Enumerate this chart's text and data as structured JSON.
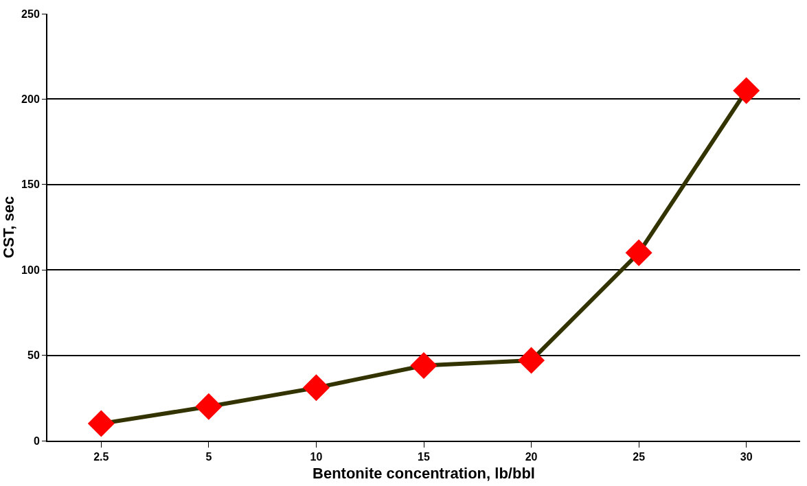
{
  "chart_data": {
    "type": "line",
    "xlabel": "Bentonite concentration, lb/bbl",
    "ylabel": "CST, sec",
    "categories": [
      "2.5",
      "5",
      "10",
      "15",
      "20",
      "25",
      "30"
    ],
    "series": [
      {
        "color": "#333300",
        "colors": [
          "#ff0000",
          "#ff0000",
          "#ff0000",
          "#ff0000",
          "#ff0000",
          "#ff0000",
          "#ff0000"
        ],
        "values": [
          10,
          20,
          31,
          44,
          47,
          110,
          205
        ]
      }
    ],
    "ylim": [
      0,
      250
    ],
    "yticks": [
      0,
      50,
      100,
      150,
      200,
      250
    ],
    "grid": "y",
    "legend": false,
    "marker": "diamond",
    "line_style": "solid"
  }
}
